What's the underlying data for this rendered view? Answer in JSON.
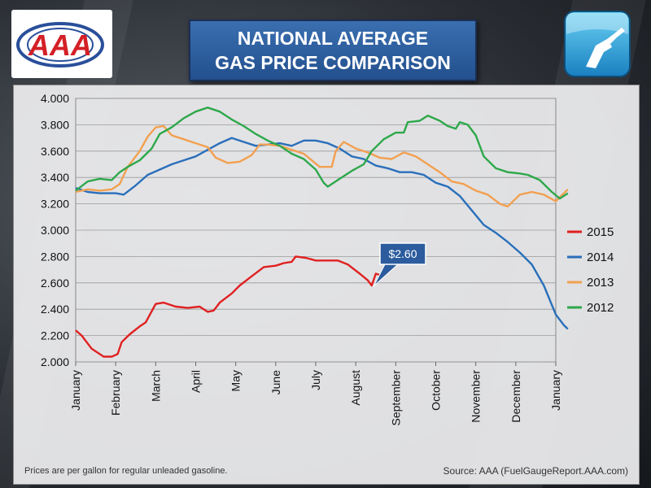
{
  "header": {
    "title_line1": "NATIONAL AVERAGE",
    "title_line2": "GAS PRICE COMPARISON",
    "logo_text": "AAA"
  },
  "footer": {
    "note": "Prices are per gallon for regular unleaded gasoline.",
    "source": "Source: AAA (FuelGaugeReport.AAA.com)"
  },
  "colors": {
    "2015": "#e02020",
    "2014": "#2a6fba",
    "2013": "#f2a050",
    "2012": "#2ea84a",
    "title_bg": "#2c5c9e",
    "callout_bg": "#2c5c9e"
  },
  "chart_data": {
    "type": "line",
    "title": "NATIONAL AVERAGE GAS PRICE COMPARISON",
    "ylim": [
      2.0,
      4.0
    ],
    "yticks": [
      "4.000",
      "3.800",
      "3.600",
      "3.400",
      "3.200",
      "3.000",
      "2.800",
      "2.600",
      "2.400",
      "2.200",
      "2.000"
    ],
    "months": [
      "January",
      "February",
      "March",
      "April",
      "May",
      "June",
      "July",
      "August",
      "September",
      "October",
      "November",
      "December",
      "January"
    ],
    "grid": true,
    "legend_placement": "right",
    "callout": {
      "label": "$2.60",
      "series": "2015",
      "month": 7.45,
      "value": 2.6
    },
    "series": [
      {
        "name": "2015",
        "color_key": "2015",
        "points": [
          [
            0,
            2.24
          ],
          [
            0.15,
            2.2
          ],
          [
            0.4,
            2.1
          ],
          [
            0.7,
            2.04
          ],
          [
            0.9,
            2.04
          ],
          [
            1.05,
            2.06
          ],
          [
            1.15,
            2.15
          ],
          [
            1.35,
            2.21
          ],
          [
            1.6,
            2.27
          ],
          [
            1.75,
            2.3
          ],
          [
            2.0,
            2.44
          ],
          [
            2.2,
            2.45
          ],
          [
            2.5,
            2.42
          ],
          [
            2.8,
            2.41
          ],
          [
            3.1,
            2.42
          ],
          [
            3.3,
            2.38
          ],
          [
            3.45,
            2.39
          ],
          [
            3.6,
            2.45
          ],
          [
            3.9,
            2.52
          ],
          [
            4.1,
            2.58
          ],
          [
            4.4,
            2.65
          ],
          [
            4.7,
            2.72
          ],
          [
            5.0,
            2.73
          ],
          [
            5.2,
            2.75
          ],
          [
            5.4,
            2.76
          ],
          [
            5.5,
            2.8
          ],
          [
            5.75,
            2.79
          ],
          [
            6.0,
            2.77
          ],
          [
            6.3,
            2.77
          ],
          [
            6.55,
            2.77
          ],
          [
            6.8,
            2.74
          ],
          [
            7.1,
            2.67
          ],
          [
            7.3,
            2.62
          ],
          [
            7.4,
            2.58
          ],
          [
            7.5,
            2.67
          ],
          [
            7.6,
            2.66
          ]
        ]
      },
      {
        "name": "2014",
        "color_key": "2014",
        "points": [
          [
            0,
            3.32
          ],
          [
            0.3,
            3.29
          ],
          [
            0.6,
            3.28
          ],
          [
            1.0,
            3.28
          ],
          [
            1.2,
            3.27
          ],
          [
            1.5,
            3.34
          ],
          [
            1.8,
            3.42
          ],
          [
            2.1,
            3.46
          ],
          [
            2.4,
            3.5
          ],
          [
            2.7,
            3.53
          ],
          [
            3.0,
            3.56
          ],
          [
            3.3,
            3.61
          ],
          [
            3.6,
            3.66
          ],
          [
            3.9,
            3.7
          ],
          [
            4.2,
            3.67
          ],
          [
            4.5,
            3.64
          ],
          [
            4.8,
            3.65
          ],
          [
            5.1,
            3.66
          ],
          [
            5.4,
            3.64
          ],
          [
            5.7,
            3.68
          ],
          [
            6.0,
            3.68
          ],
          [
            6.3,
            3.66
          ],
          [
            6.6,
            3.62
          ],
          [
            6.9,
            3.56
          ],
          [
            7.2,
            3.54
          ],
          [
            7.5,
            3.49
          ],
          [
            7.8,
            3.47
          ],
          [
            8.1,
            3.44
          ],
          [
            8.4,
            3.44
          ],
          [
            8.7,
            3.42
          ],
          [
            9.0,
            3.36
          ],
          [
            9.3,
            3.33
          ],
          [
            9.6,
            3.26
          ],
          [
            9.9,
            3.15
          ],
          [
            10.2,
            3.04
          ],
          [
            10.5,
            2.98
          ],
          [
            10.8,
            2.91
          ],
          [
            11.1,
            2.83
          ],
          [
            11.4,
            2.74
          ],
          [
            11.7,
            2.58
          ],
          [
            12.0,
            2.36
          ],
          [
            12.2,
            2.28
          ],
          [
            12.3,
            2.25
          ]
        ]
      },
      {
        "name": "2013",
        "color_key": "2013",
        "points": [
          [
            0,
            3.29
          ],
          [
            0.3,
            3.31
          ],
          [
            0.6,
            3.3
          ],
          [
            0.9,
            3.31
          ],
          [
            1.1,
            3.35
          ],
          [
            1.3,
            3.48
          ],
          [
            1.6,
            3.6
          ],
          [
            1.8,
            3.71
          ],
          [
            2.0,
            3.78
          ],
          [
            2.2,
            3.79
          ],
          [
            2.4,
            3.72
          ],
          [
            2.7,
            3.69
          ],
          [
            3.0,
            3.66
          ],
          [
            3.3,
            3.63
          ],
          [
            3.5,
            3.55
          ],
          [
            3.8,
            3.51
          ],
          [
            4.1,
            3.52
          ],
          [
            4.4,
            3.57
          ],
          [
            4.6,
            3.65
          ],
          [
            4.8,
            3.65
          ],
          [
            5.1,
            3.64
          ],
          [
            5.4,
            3.61
          ],
          [
            5.7,
            3.58
          ],
          [
            5.9,
            3.53
          ],
          [
            6.1,
            3.48
          ],
          [
            6.4,
            3.48
          ],
          [
            6.5,
            3.6
          ],
          [
            6.7,
            3.67
          ],
          [
            7.0,
            3.62
          ],
          [
            7.3,
            3.59
          ],
          [
            7.6,
            3.55
          ],
          [
            7.9,
            3.54
          ],
          [
            8.2,
            3.59
          ],
          [
            8.5,
            3.56
          ],
          [
            8.8,
            3.5
          ],
          [
            9.1,
            3.44
          ],
          [
            9.4,
            3.37
          ],
          [
            9.7,
            3.35
          ],
          [
            10.0,
            3.3
          ],
          [
            10.3,
            3.27
          ],
          [
            10.6,
            3.2
          ],
          [
            10.8,
            3.18
          ],
          [
            11.1,
            3.27
          ],
          [
            11.4,
            3.29
          ],
          [
            11.7,
            3.27
          ],
          [
            12.0,
            3.22
          ],
          [
            12.3,
            3.31
          ]
        ]
      },
      {
        "name": "2012",
        "color_key": "2012",
        "points": [
          [
            0,
            3.3
          ],
          [
            0.3,
            3.37
          ],
          [
            0.6,
            3.39
          ],
          [
            0.9,
            3.38
          ],
          [
            1.1,
            3.44
          ],
          [
            1.3,
            3.48
          ],
          [
            1.6,
            3.53
          ],
          [
            1.9,
            3.62
          ],
          [
            2.1,
            3.73
          ],
          [
            2.4,
            3.78
          ],
          [
            2.7,
            3.85
          ],
          [
            3.0,
            3.9
          ],
          [
            3.3,
            3.93
          ],
          [
            3.6,
            3.9
          ],
          [
            3.9,
            3.84
          ],
          [
            4.2,
            3.79
          ],
          [
            4.5,
            3.73
          ],
          [
            4.8,
            3.68
          ],
          [
            5.1,
            3.64
          ],
          [
            5.4,
            3.58
          ],
          [
            5.7,
            3.54
          ],
          [
            6.0,
            3.46
          ],
          [
            6.2,
            3.36
          ],
          [
            6.3,
            3.33
          ],
          [
            6.6,
            3.39
          ],
          [
            6.9,
            3.45
          ],
          [
            7.2,
            3.5
          ],
          [
            7.4,
            3.6
          ],
          [
            7.7,
            3.69
          ],
          [
            8.0,
            3.74
          ],
          [
            8.2,
            3.74
          ],
          [
            8.3,
            3.82
          ],
          [
            8.6,
            3.83
          ],
          [
            8.8,
            3.87
          ],
          [
            9.1,
            3.83
          ],
          [
            9.3,
            3.79
          ],
          [
            9.5,
            3.77
          ],
          [
            9.6,
            3.82
          ],
          [
            9.8,
            3.8
          ],
          [
            10.0,
            3.72
          ],
          [
            10.2,
            3.56
          ],
          [
            10.5,
            3.47
          ],
          [
            10.8,
            3.44
          ],
          [
            11.1,
            3.43
          ],
          [
            11.3,
            3.42
          ],
          [
            11.6,
            3.38
          ],
          [
            11.9,
            3.29
          ],
          [
            12.1,
            3.24
          ],
          [
            12.3,
            3.28
          ]
        ]
      }
    ]
  }
}
